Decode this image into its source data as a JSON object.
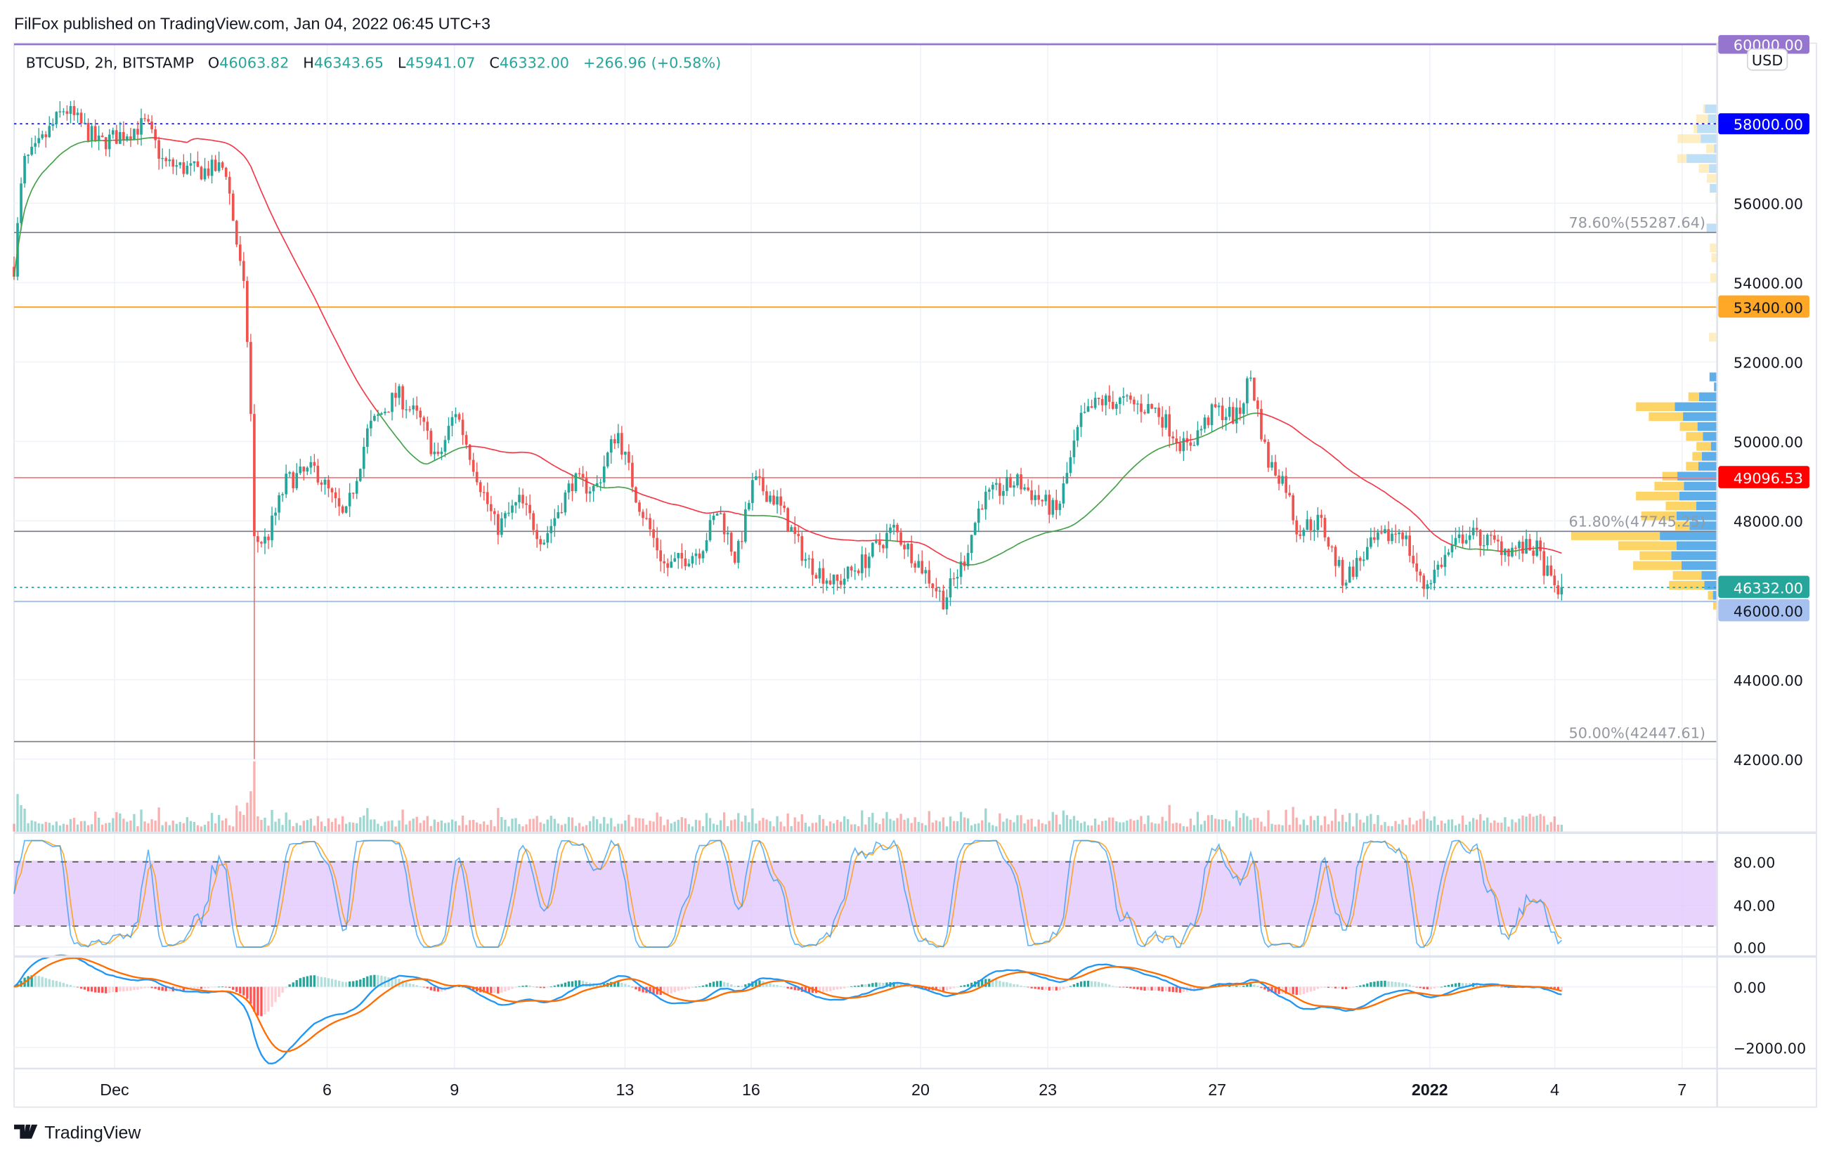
{
  "header": {
    "published": "FilFox published on TradingView.com, Jan 04, 2022 06:45 UTC+3"
  },
  "legend": {
    "symbol": "BTCUSD, 2h, BITSTAMP",
    "o_label": "O",
    "o_value": "46063.82",
    "h_label": "H",
    "h_value": "46343.65",
    "l_label": "L",
    "l_value": "45941.07",
    "c_label": "C",
    "c_value": "46332.00",
    "change": "+266.96 (+0.58%)"
  },
  "price_axis": {
    "currency": "USD",
    "ticks": [
      "56000.00",
      "54000.00",
      "52000.00",
      "50000.00",
      "48000.00",
      "44000.00",
      "42000.00"
    ],
    "tags": {
      "p60000": "60000.00",
      "p58000": "58000.00",
      "p53400": "53400.00",
      "p49096": "49096.53",
      "p46332": "46332.00",
      "p46000": "46000.00"
    }
  },
  "fib": {
    "f786": "78.60%(55287.64)",
    "f618": "61.80%(47745.25)",
    "f500": "50.00%(42447.61)"
  },
  "stoch_axis": {
    "t80": "80.00",
    "t40": "40.00",
    "t0": "0.00"
  },
  "macd_axis": {
    "t0": "0.00",
    "tm2000": "−2000.00"
  },
  "time_axis": [
    "Dec",
    "6",
    "9",
    "13",
    "16",
    "20",
    "23",
    "27",
    "2022",
    "4",
    "7"
  ],
  "footer": {
    "brand": "TradingView"
  },
  "colors": {
    "up": "#26a69a",
    "down": "#ef5350",
    "ma_above": "#43a047",
    "ma_below": "#f23645",
    "purple": "#9575cd",
    "blue": "#0000ff",
    "orange": "#ffa726",
    "red": "#ff0000",
    "teal": "#26a69a",
    "lightblue": "#a6c1f0",
    "fibgray": "#787b86",
    "stoch_k": "#2196f3",
    "stoch_d": "#ff9800",
    "stoch_band": "#e1c8fb"
  },
  "chart_data": {
    "type": "candlestick",
    "title": "BTCUSD, 2h, BITSTAMP",
    "x_unit": "days since Dec 1 2021",
    "bar_interval_days": 0.08333,
    "ylim": [
      40500,
      60500
    ],
    "levels": [
      60000,
      58000,
      55287.64,
      53400,
      49096.53,
      47745.25,
      46332,
      46000,
      42447.61
    ],
    "crash_low": {
      "day": 3.28,
      "low": 42000
    },
    "price_path": [
      [
        -2.37,
        54400
      ],
      [
        -2.15,
        57000
      ],
      [
        -1.87,
        57300
      ],
      [
        -1.18,
        58400
      ],
      [
        -0.36,
        57500
      ],
      [
        0.74,
        58000
      ],
      [
        1.16,
        57000
      ],
      [
        1.98,
        56800
      ],
      [
        2.62,
        56900
      ],
      [
        2.81,
        55500
      ],
      [
        3.09,
        53500
      ],
      [
        3.22,
        50500
      ],
      [
        3.28,
        47500
      ],
      [
        3.58,
        47500
      ],
      [
        4.05,
        49000
      ],
      [
        4.74,
        49300
      ],
      [
        5.43,
        48000
      ],
      [
        5.98,
        50300
      ],
      [
        6.67,
        51200
      ],
      [
        7.22,
        50500
      ],
      [
        7.63,
        49500
      ],
      [
        8.04,
        50800
      ],
      [
        8.6,
        49000
      ],
      [
        9.01,
        47800
      ],
      [
        9.56,
        48500
      ],
      [
        10.11,
        47500
      ],
      [
        10.8,
        49000
      ],
      [
        11.35,
        48800
      ],
      [
        11.85,
        50300
      ],
      [
        12.31,
        48600
      ],
      [
        12.73,
        47500
      ],
      [
        13.0,
        46800
      ],
      [
        13.83,
        47300
      ],
      [
        14.24,
        48300
      ],
      [
        14.66,
        47000
      ],
      [
        15.07,
        49000
      ],
      [
        15.62,
        48500
      ],
      [
        16.31,
        47000
      ],
      [
        17.0,
        46400
      ],
      [
        17.69,
        47000
      ],
      [
        18.37,
        47800
      ],
      [
        19.06,
        46800
      ],
      [
        19.56,
        46000
      ],
      [
        20.03,
        47000
      ],
      [
        20.44,
        48500
      ],
      [
        21.27,
        49000
      ],
      [
        22.23,
        48200
      ],
      [
        22.78,
        50500
      ],
      [
        23.2,
        51000
      ],
      [
        23.75,
        51000
      ],
      [
        24.57,
        50800
      ],
      [
        25.26,
        49800
      ],
      [
        25.95,
        50800
      ],
      [
        26.5,
        50600
      ],
      [
        26.78,
        51700
      ],
      [
        27.19,
        49500
      ],
      [
        27.6,
        49000
      ],
      [
        27.88,
        47800
      ],
      [
        28.43,
        48000
      ],
      [
        28.98,
        46500
      ],
      [
        29.67,
        47400
      ],
      [
        30.36,
        47800
      ],
      [
        30.85,
        46300
      ],
      [
        31.32,
        47000
      ],
      [
        31.87,
        47700
      ],
      [
        32.84,
        47300
      ],
      [
        33.53,
        47300
      ],
      [
        33.94,
        46300
      ],
      [
        34.16,
        46332
      ]
    ],
    "indicators": [
      "Moving Average",
      "Volume",
      "Volume Profile",
      "Stochastic RSI (80/20 bands)",
      "MACD"
    ]
  }
}
